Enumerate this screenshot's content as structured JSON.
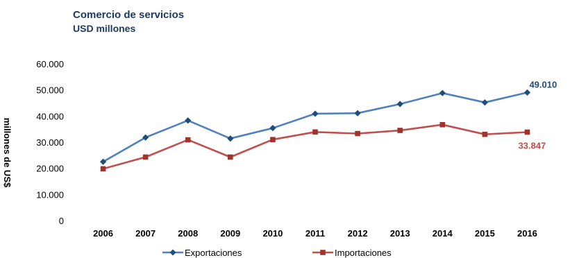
{
  "chart_data": {
    "type": "line",
    "title": "Comercio de servicios",
    "subtitle": "USD millones",
    "ylabel": "millones de US$",
    "xlabel": "",
    "categories": [
      "2006",
      "2007",
      "2008",
      "2009",
      "2010",
      "2011",
      "2012",
      "2013",
      "2014",
      "2015",
      "2016"
    ],
    "ylim": [
      0,
      60000
    ],
    "yticks": [
      0,
      10000,
      20000,
      30000,
      40000,
      50000,
      60000
    ],
    "ytick_labels": [
      "0",
      "10.000",
      "20.000",
      "30.000",
      "40.000",
      "50.000",
      "60.000"
    ],
    "grid": false,
    "legend_position": "bottom",
    "series": [
      {
        "name": "Exportaciones",
        "color": "#4f81bd",
        "marker": "diamond",
        "values": [
          22500,
          31800,
          38300,
          31400,
          35400,
          40900,
          41100,
          44600,
          48800,
          45200,
          49010
        ],
        "end_label": "49.010"
      },
      {
        "name": "Importaciones",
        "color": "#c0504d",
        "marker": "square",
        "values": [
          19800,
          24300,
          30900,
          24300,
          31000,
          33900,
          33300,
          34500,
          36700,
          33000,
          33847
        ],
        "end_label": "33.847"
      }
    ]
  }
}
